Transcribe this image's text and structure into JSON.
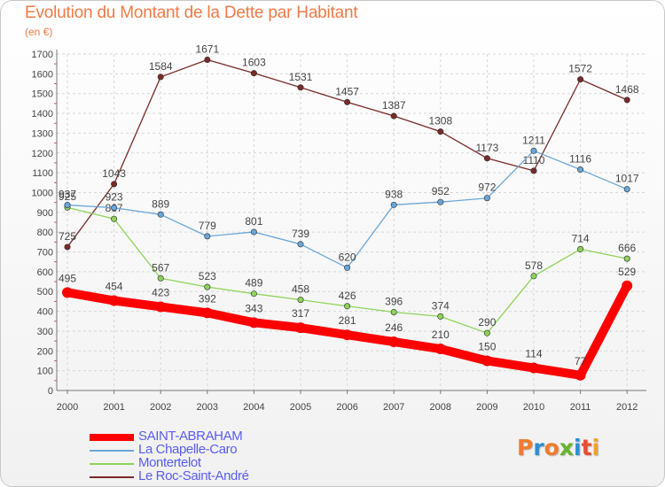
{
  "chart_data": {
    "type": "line",
    "title": "Evolution du Montant de la Dette par Habitant",
    "subtitle": "(en €)",
    "categories": [
      "2000",
      "2001",
      "2002",
      "2003",
      "2004",
      "2005",
      "2006",
      "2007",
      "2008",
      "2009",
      "2010",
      "2011",
      "2012"
    ],
    "ylim": [
      0,
      1700
    ],
    "yticks": [
      0,
      100,
      200,
      300,
      400,
      500,
      600,
      700,
      800,
      900,
      1000,
      1100,
      1200,
      1300,
      1400,
      1500,
      1600,
      1700
    ],
    "grid": true,
    "legend_position": "bottom-left",
    "series": [
      {
        "name": "Le Roc-Saint-André",
        "color": "#7a2a2a",
        "thick": false,
        "values": [
          725,
          1043,
          1584,
          1671,
          1603,
          1531,
          1457,
          1387,
          1308,
          1173,
          1110,
          1572,
          1468
        ]
      },
      {
        "name": "Montertelot",
        "color": "#8ed35a",
        "thick": false,
        "values": [
          925,
          867,
          567,
          523,
          489,
          458,
          426,
          396,
          374,
          290,
          578,
          714,
          666
        ]
      },
      {
        "name": "La Chapelle-Caro",
        "color": "#6aa6d9",
        "thick": false,
        "values": [
          937,
          923,
          889,
          779,
          801,
          739,
          620,
          938,
          952,
          972,
          1211,
          1116,
          1017
        ]
      },
      {
        "name": "SAINT-ABRAHAM",
        "color": "#ff0000",
        "thick": true,
        "values": [
          495,
          454,
          423,
          392,
          343,
          317,
          281,
          246,
          210,
          150,
          114,
          77,
          529
        ]
      }
    ],
    "legend_order": [
      "SAINT-ABRAHAM",
      "La Chapelle-Caro",
      "Montertelot",
      "Le Roc-Saint-André"
    ]
  },
  "logo": {
    "text": "Proxiti",
    "colors": [
      "#f07c2c",
      "#2a8fd6",
      "#f07c2c",
      "#66b32e",
      "#2a8fd6",
      "#e94d2f",
      "#f0a12c"
    ]
  }
}
